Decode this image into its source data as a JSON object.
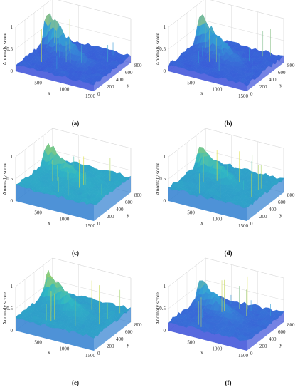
{
  "figure": {
    "panel_labels": [
      "(a)",
      "(b)",
      "(c)",
      "(d)",
      "(e)",
      "(f)"
    ]
  },
  "chart_data": [
    {
      "type": "surface",
      "panel": "(a)",
      "xlabel": "x",
      "ylabel": "y",
      "zlabel": "Anomaly score",
      "xlim": [
        0,
        1500
      ],
      "ylim": [
        0,
        800
      ],
      "zlim": [
        0,
        1
      ],
      "xticks": [
        500,
        1000,
        1500
      ],
      "yticks": [
        0,
        200,
        400,
        600,
        800
      ],
      "zticks": [
        0,
        0.5,
        1
      ],
      "base_level": 0.15,
      "ridge_peak": 0.9,
      "surface_colors": [
        "#3a4fd8",
        "#33a3d6",
        "#e9e33a"
      ]
    },
    {
      "type": "surface",
      "panel": "(b)",
      "xlabel": "x",
      "ylabel": "y",
      "zlabel": "Anomaly score",
      "xlim": [
        0,
        1500
      ],
      "ylim": [
        0,
        800
      ],
      "zlim": [
        0,
        1
      ],
      "xticks": [
        500,
        1000,
        1500
      ],
      "yticks": [
        0,
        200,
        400,
        600,
        800
      ],
      "zticks": [
        0,
        0.5,
        1
      ],
      "base_level": 0.15,
      "ridge_peak": 0.85,
      "surface_colors": [
        "#3a4fd8",
        "#33a3d6",
        "#e9e33a"
      ]
    },
    {
      "type": "surface",
      "panel": "(c)",
      "xlabel": "x",
      "ylabel": "y",
      "zlabel": "Anomaly score",
      "xlim": [
        0,
        1500
      ],
      "ylim": [
        0,
        800
      ],
      "zlim": [
        0,
        1
      ],
      "xticks": [
        500,
        1000,
        1500
      ],
      "yticks": [
        0,
        200,
        400,
        600,
        800
      ],
      "zticks": [
        0,
        0.5,
        1
      ],
      "base_level": 0.35,
      "ridge_peak": 0.8,
      "surface_colors": [
        "#2f7fd0",
        "#2fb8c4",
        "#e0df3a"
      ]
    },
    {
      "type": "surface",
      "panel": "(d)",
      "xlabel": "x",
      "ylabel": "y",
      "zlabel": "Anomaly score",
      "xlim": [
        0,
        1500
      ],
      "ylim": [
        0,
        800
      ],
      "zlim": [
        0,
        1
      ],
      "xticks": [
        500,
        1000,
        1500
      ],
      "yticks": [
        0,
        200,
        400,
        600,
        800
      ],
      "zticks": [
        0,
        0.5,
        1
      ],
      "base_level": 0.3,
      "ridge_peak": 0.8,
      "surface_colors": [
        "#2f7fd0",
        "#2fb8c4",
        "#e0df3a"
      ]
    },
    {
      "type": "surface",
      "panel": "(e)",
      "xlabel": "x",
      "ylabel": "y",
      "zlabel": "Anomaly score",
      "xlim": [
        0,
        1500
      ],
      "ylim": [
        0,
        800
      ],
      "zlim": [
        0,
        1
      ],
      "xticks": [
        500,
        1000,
        1500
      ],
      "yticks": [
        0,
        200,
        400,
        600,
        800
      ],
      "zticks": [
        0,
        0.5,
        1
      ],
      "base_level": 0.3,
      "ridge_peak": 0.85,
      "surface_colors": [
        "#2f7fd0",
        "#2fb8c4",
        "#e0df3a"
      ]
    },
    {
      "type": "surface",
      "panel": "(f)",
      "xlabel": "x",
      "ylabel": "y",
      "zlabel": "Anomaly score",
      "xlim": [
        0,
        1500
      ],
      "ylim": [
        0,
        800
      ],
      "zlim": [
        0,
        1
      ],
      "xticks": [
        500,
        1000,
        1500
      ],
      "yticks": [
        0,
        200,
        400,
        600,
        800
      ],
      "zticks": [
        0,
        0.5,
        1
      ],
      "base_level": 0.2,
      "ridge_peak": 0.7,
      "surface_colors": [
        "#3a4fd8",
        "#33a3d6",
        "#e9e33a"
      ]
    }
  ]
}
